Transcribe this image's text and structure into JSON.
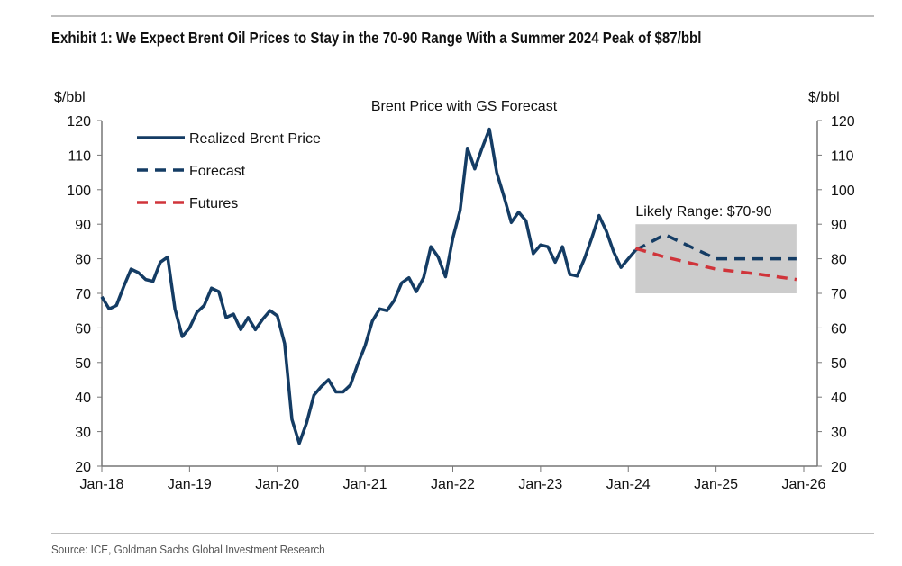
{
  "title": "Exhibit 1: We Expect Brent Oil Prices to Stay in the 70-90 Range With a Summer 2024 Peak of $87/bbl",
  "source": "Source: ICE, Goldman Sachs Global Investment Research",
  "chart_data": {
    "type": "line",
    "title": "Brent Price with GS Forecast",
    "ylabel_left": "$/bbl",
    "ylabel_right": "$/bbl",
    "ylim": [
      20,
      120
    ],
    "yticks": [
      20,
      30,
      40,
      50,
      60,
      70,
      80,
      90,
      100,
      110,
      120
    ],
    "xlim": [
      "2018-01",
      "2026-01"
    ],
    "xticks": [
      {
        "date": "2018-01",
        "label": "Jan-18"
      },
      {
        "date": "2019-01",
        "label": "Jan-19"
      },
      {
        "date": "2020-01",
        "label": "Jan-20"
      },
      {
        "date": "2021-01",
        "label": "Jan-21"
      },
      {
        "date": "2022-01",
        "label": "Jan-22"
      },
      {
        "date": "2023-01",
        "label": "Jan-23"
      },
      {
        "date": "2024-01",
        "label": "Jan-24"
      },
      {
        "date": "2025-01",
        "label": "Jan-25"
      },
      {
        "date": "2026-01",
        "label": "Jan-26"
      }
    ],
    "legend_position": "top-left",
    "annotation": {
      "label": "Likely Range: $70-90",
      "from": "2024-02",
      "to": "2025-12",
      "low": 70,
      "high": 90,
      "color": "#cccccc"
    },
    "series": [
      {
        "name": "Realized Brent Price",
        "style": "solid",
        "color": "#143c64",
        "start": "2018-01",
        "values": [
          69,
          65.5,
          66.5,
          72,
          77,
          76,
          74,
          73.5,
          79,
          80.5,
          65.5,
          57.5,
          60,
          64.5,
          66.5,
          71.5,
          70.5,
          63,
          64,
          59.5,
          63,
          59.5,
          62.5,
          65,
          63.5,
          55.5,
          33.5,
          26.6,
          32.5,
          40.5,
          43,
          45,
          41.5,
          41.5,
          43.5,
          49.5,
          54.8,
          62,
          65.5,
          65,
          68,
          73,
          74.5,
          70.5,
          74.5,
          83.5,
          80.5,
          74.8,
          86,
          94,
          112,
          106,
          112,
          117.5,
          105,
          98,
          90.5,
          93.5,
          91,
          81.5,
          84,
          83.5,
          79,
          83.5,
          75.5,
          75,
          80,
          86,
          92.5,
          88,
          82,
          77.5,
          80,
          82.5
        ]
      },
      {
        "name": "Forecast",
        "style": "dashed",
        "color": "#143c64",
        "points": [
          [
            "2024-02",
            82.5
          ],
          [
            "2024-06",
            87
          ],
          [
            "2025-01",
            80
          ],
          [
            "2025-12",
            80
          ]
        ]
      },
      {
        "name": "Futures",
        "style": "dashed",
        "color": "#d0343a",
        "points": [
          [
            "2024-02",
            83
          ],
          [
            "2024-06",
            80.5
          ],
          [
            "2025-01",
            77
          ],
          [
            "2025-07",
            75.5
          ],
          [
            "2025-12",
            74
          ]
        ]
      }
    ]
  }
}
